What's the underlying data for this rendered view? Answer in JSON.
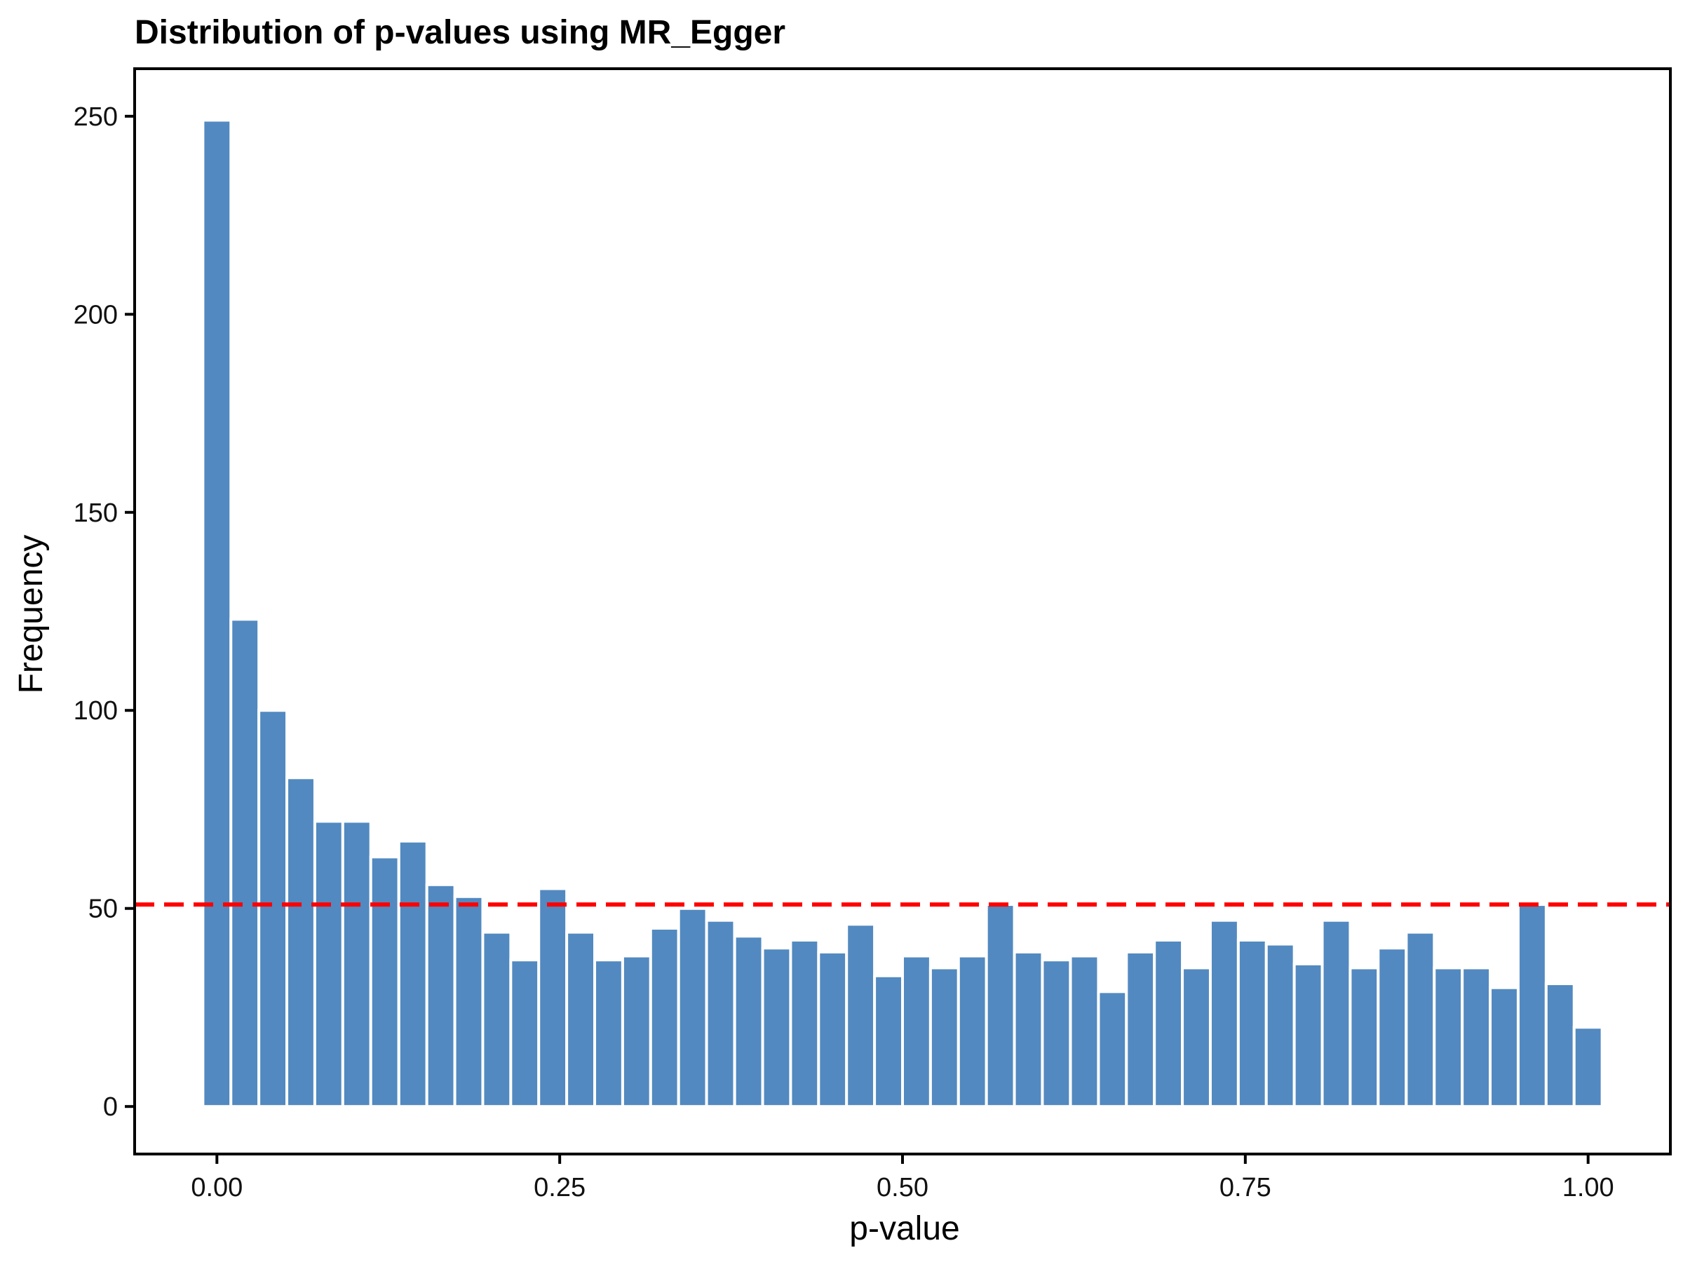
{
  "chart_data": {
    "type": "bar",
    "title": "Distribution of p-values using MR_Egger",
    "xlabel": "p-value",
    "ylabel": "Frequency",
    "bar_color": "#5289c0",
    "reference_line": {
      "y": 51,
      "color": "#ff0000",
      "style": "dashed"
    },
    "xlim": [
      -0.06,
      1.06
    ],
    "ylim": [
      -12,
      262
    ],
    "x_ticks": [
      0.0,
      0.25,
      0.5,
      0.75,
      1.0
    ],
    "x_tick_labels": [
      "0.00",
      "0.25",
      "0.50",
      "0.75",
      "1.00"
    ],
    "y_ticks": [
      0,
      50,
      100,
      150,
      200,
      250
    ],
    "y_tick_labels": [
      "0",
      "50",
      "100",
      "150",
      "200",
      "250"
    ],
    "bin_width": 0.0204,
    "x": [
      0.0,
      0.0204,
      0.0408,
      0.0612,
      0.0816,
      0.102,
      0.1224,
      0.1429,
      0.1633,
      0.1837,
      0.2041,
      0.2245,
      0.2449,
      0.2653,
      0.2857,
      0.3061,
      0.3265,
      0.3469,
      0.3673,
      0.3878,
      0.4082,
      0.4286,
      0.449,
      0.4694,
      0.4898,
      0.5102,
      0.5306,
      0.551,
      0.5714,
      0.5918,
      0.6122,
      0.6327,
      0.6531,
      0.6735,
      0.6939,
      0.7143,
      0.7347,
      0.7551,
      0.7755,
      0.7959,
      0.8163,
      0.8367,
      0.8571,
      0.8776,
      0.898,
      0.9184,
      0.9388,
      0.9592,
      0.9796,
      1.0
    ],
    "values": [
      249,
      123,
      100,
      83,
      72,
      72,
      63,
      67,
      56,
      53,
      44,
      37,
      55,
      44,
      37,
      38,
      45,
      50,
      47,
      43,
      40,
      42,
      39,
      46,
      33,
      38,
      35,
      38,
      51,
      39,
      37,
      38,
      29,
      39,
      42,
      35,
      47,
      42,
      41,
      36,
      47,
      35,
      40,
      44,
      35,
      35,
      30,
      51,
      31,
      20
    ]
  }
}
